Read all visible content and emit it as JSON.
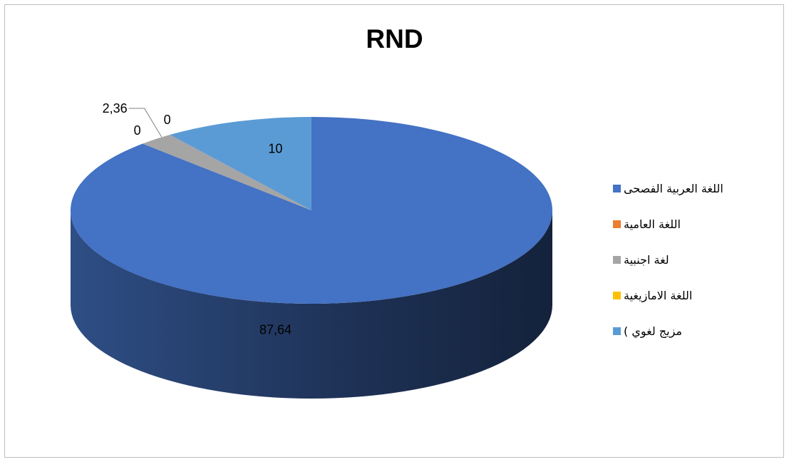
{
  "chart_data": {
    "type": "pie",
    "style": "3d",
    "title": "RND",
    "categories": [
      "اللغة العربية الفصحى",
      "اللغة العامية",
      "لغة اجنبية",
      "اللغة الامازيغية",
      "مزيج لغوي )"
    ],
    "values": [
      87.64,
      0,
      2.36,
      0,
      10
    ],
    "data_labels": [
      "87,64",
      "0",
      "2,36",
      "0",
      "10"
    ],
    "colors": [
      "#4472C4",
      "#ED7D31",
      "#A5A5A5",
      "#FFC000",
      "#5B9BD5"
    ],
    "legend_placement": "right"
  }
}
